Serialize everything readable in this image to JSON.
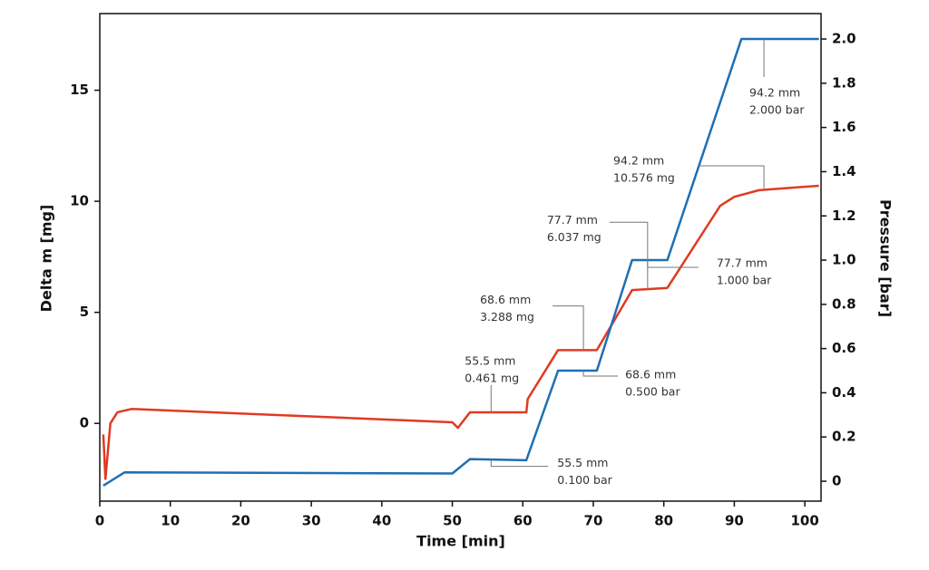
{
  "chart_data": {
    "type": "line",
    "x_label": "Time [min]",
    "y_label": "Delta m [mg]",
    "y2_label": "Pressure [bar]",
    "xlim": [
      0,
      102.3
    ],
    "xticks": [
      0,
      10,
      20,
      30,
      40,
      50,
      60,
      70,
      80,
      90,
      100
    ],
    "ylim": [
      -3.5,
      18.45
    ],
    "yticks": [
      0,
      5,
      10,
      15
    ],
    "y2lim": [
      -0.09,
      2.115
    ],
    "y2ticks": [
      0,
      0.2,
      0.4,
      0.6,
      0.8,
      {
        "value": 1,
        "label": "1.0"
      },
      1.2,
      1.4,
      1.6,
      1.8,
      {
        "value": 2,
        "label": "2.0"
      }
    ],
    "series": [
      {
        "name": "Delta m",
        "color": "#e03a22",
        "axis": "y",
        "x": [
          0.5,
          0.8,
          1.5,
          2.5,
          4.5,
          50,
          50.8,
          52.5,
          60.5,
          60.7,
          65,
          70.5,
          75.5,
          80.5,
          88,
          90,
          93.5,
          102
        ],
        "values": [
          -0.5,
          -2.5,
          0,
          0.5,
          0.65,
          0.05,
          -0.2,
          0.5,
          0.5,
          1.1,
          3.3,
          3.3,
          6.0,
          6.1,
          9.8,
          10.2,
          10.5,
          10.7
        ]
      },
      {
        "name": "Pressure",
        "color": "#1f6fb2",
        "axis": "y2",
        "x": [
          0.5,
          3.5,
          50,
          52.5,
          60.5,
          65,
          70.5,
          75.5,
          80.5,
          91,
          102
        ],
        "values": [
          -0.02,
          0.04,
          0.035,
          0.1,
          0.095,
          0.5,
          0.5,
          1.0,
          1.0,
          2.0,
          2.0
        ]
      }
    ],
    "annotations": [
      {
        "x": 55.5,
        "y": 0.461,
        "axis": "y",
        "text": [
          "55.5 mm",
          "0.461 mg"
        ]
      },
      {
        "x": 68.6,
        "y": 3.288,
        "axis": "y",
        "text": [
          "68.6 mm",
          "3.288 mg"
        ]
      },
      {
        "x": 77.7,
        "y": 6.037,
        "axis": "y",
        "text": [
          "77.7 mm",
          "6.037 mg"
        ]
      },
      {
        "x": 94.2,
        "y": 10.576,
        "axis": "y",
        "text": [
          "94.2 mm",
          "10.576 mg"
        ]
      },
      {
        "x": 55.5,
        "y": 0.1,
        "axis": "y2",
        "text": [
          "55.5 mm",
          "0.100 bar"
        ]
      },
      {
        "x": 68.6,
        "y": 0.5,
        "axis": "y2",
        "text": [
          "68.6 mm",
          "0.500 bar"
        ]
      },
      {
        "x": 77.7,
        "y": 1.0,
        "axis": "y2",
        "text": [
          "77.7 mm",
          "1.000 bar"
        ]
      },
      {
        "x": 94.2,
        "y": 2.0,
        "axis": "y2",
        "text": [
          "94.2 mm",
          "2.000 bar"
        ]
      }
    ]
  }
}
